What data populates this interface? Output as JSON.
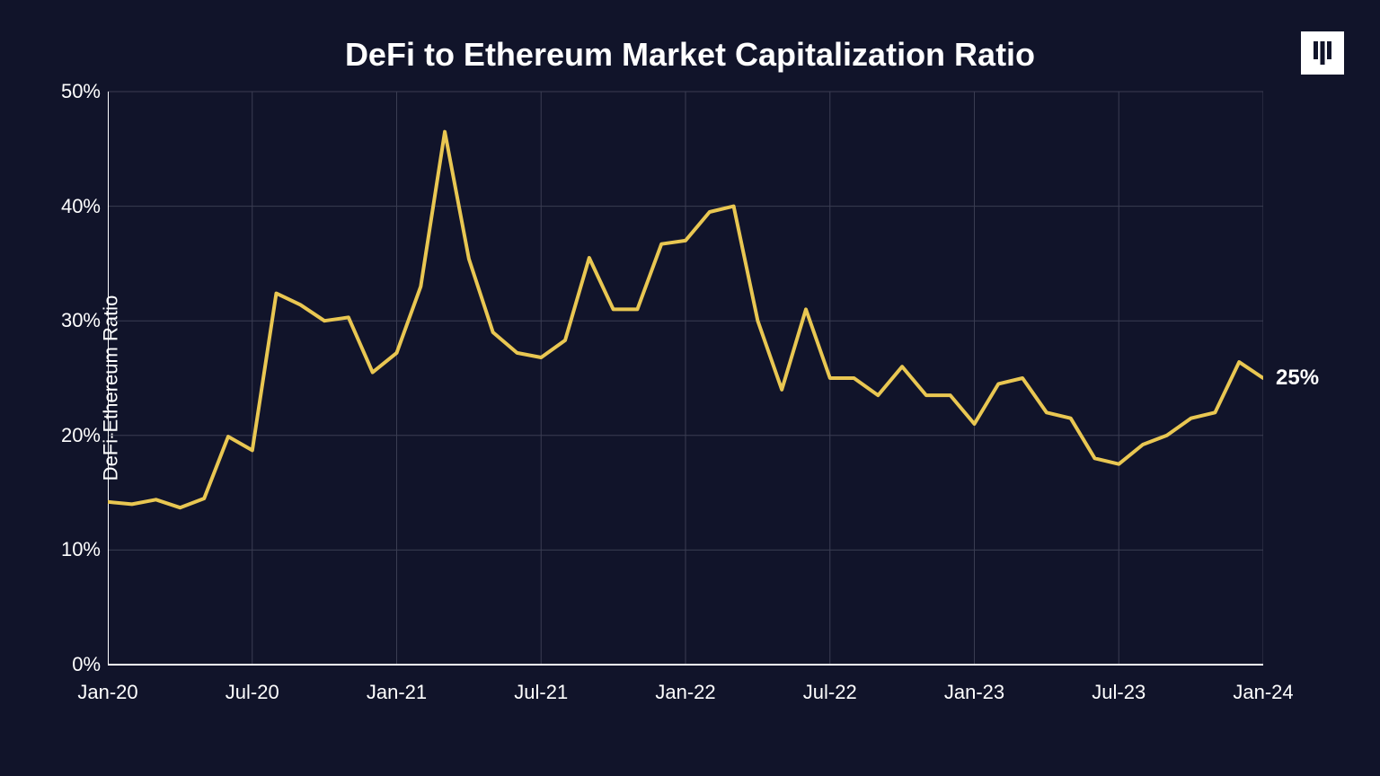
{
  "chart": {
    "type": "line",
    "title": "DeFi to Ethereum Market Capitalization Ratio",
    "title_fontsize": 36,
    "ylabel": "DeFi-Ethereum Ratio",
    "ylabel_fontsize": 22,
    "background_color": "#11142a",
    "grid_color": "#3a3d52",
    "axis_color": "#ffffff",
    "line_color": "#e9c752",
    "line_width": 4,
    "text_color": "#ffffff",
    "tick_fontsize": 22,
    "ylim": [
      0,
      50
    ],
    "yticks": [
      0,
      10,
      20,
      30,
      40,
      50
    ],
    "ytick_labels": [
      "0%",
      "10%",
      "20%",
      "30%",
      "40%",
      "50%"
    ],
    "x_count": 49,
    "xtick_indices": [
      0,
      6,
      12,
      18,
      24,
      30,
      36,
      42,
      48
    ],
    "xtick_labels": [
      "Jan-20",
      "Jul-20",
      "Jan-21",
      "Jul-21",
      "Jan-22",
      "Jul-22",
      "Jan-23",
      "Jul-23",
      "Jan-24"
    ],
    "values": [
      14.2,
      14.0,
      14.4,
      13.7,
      14.5,
      19.9,
      18.7,
      32.4,
      31.4,
      30.0,
      30.3,
      25.5,
      27.2,
      33.0,
      46.5,
      35.4,
      29.0,
      27.2,
      26.8,
      28.3,
      35.5,
      31.0,
      31.0,
      36.7,
      37.0,
      39.5,
      40.0,
      30.0,
      24.0,
      31.0,
      25.0,
      25.0,
      23.5,
      26.0,
      23.5,
      23.5,
      21.0,
      24.5,
      25.0,
      22.0,
      21.5,
      18.0,
      17.5,
      19.2,
      20.0,
      21.5,
      22.0,
      26.4,
      25.0
    ],
    "end_label": "25%",
    "end_label_fontsize": 24
  }
}
